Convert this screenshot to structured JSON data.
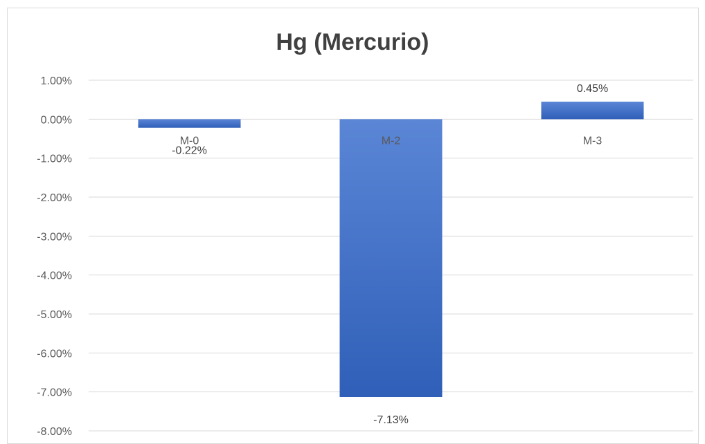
{
  "chart_data": {
    "type": "bar",
    "title": "Hg (Mercurio)",
    "xlabel": "",
    "ylabel": "",
    "categories": [
      "M-0",
      "M-2",
      "M-3"
    ],
    "values": [
      -0.22,
      -7.13,
      0.45
    ],
    "value_labels": [
      "-0.22%",
      "-7.13%",
      "0.45%"
    ],
    "ylim": [
      -8,
      1
    ],
    "y_ticks": [
      1,
      0,
      -1,
      -2,
      -3,
      -4,
      -5,
      -6,
      -7,
      -8
    ],
    "y_tick_labels": [
      "1.00%",
      "0.00%",
      "-1.00%",
      "-2.00%",
      "-3.00%",
      "-4.00%",
      "-5.00%",
      "-6.00%",
      "-7.00%",
      "-8.00%"
    ],
    "grid": true,
    "legend": "none",
    "bar_color_light": "#5b86d6",
    "bar_color_dark": "#2f5fb8"
  }
}
